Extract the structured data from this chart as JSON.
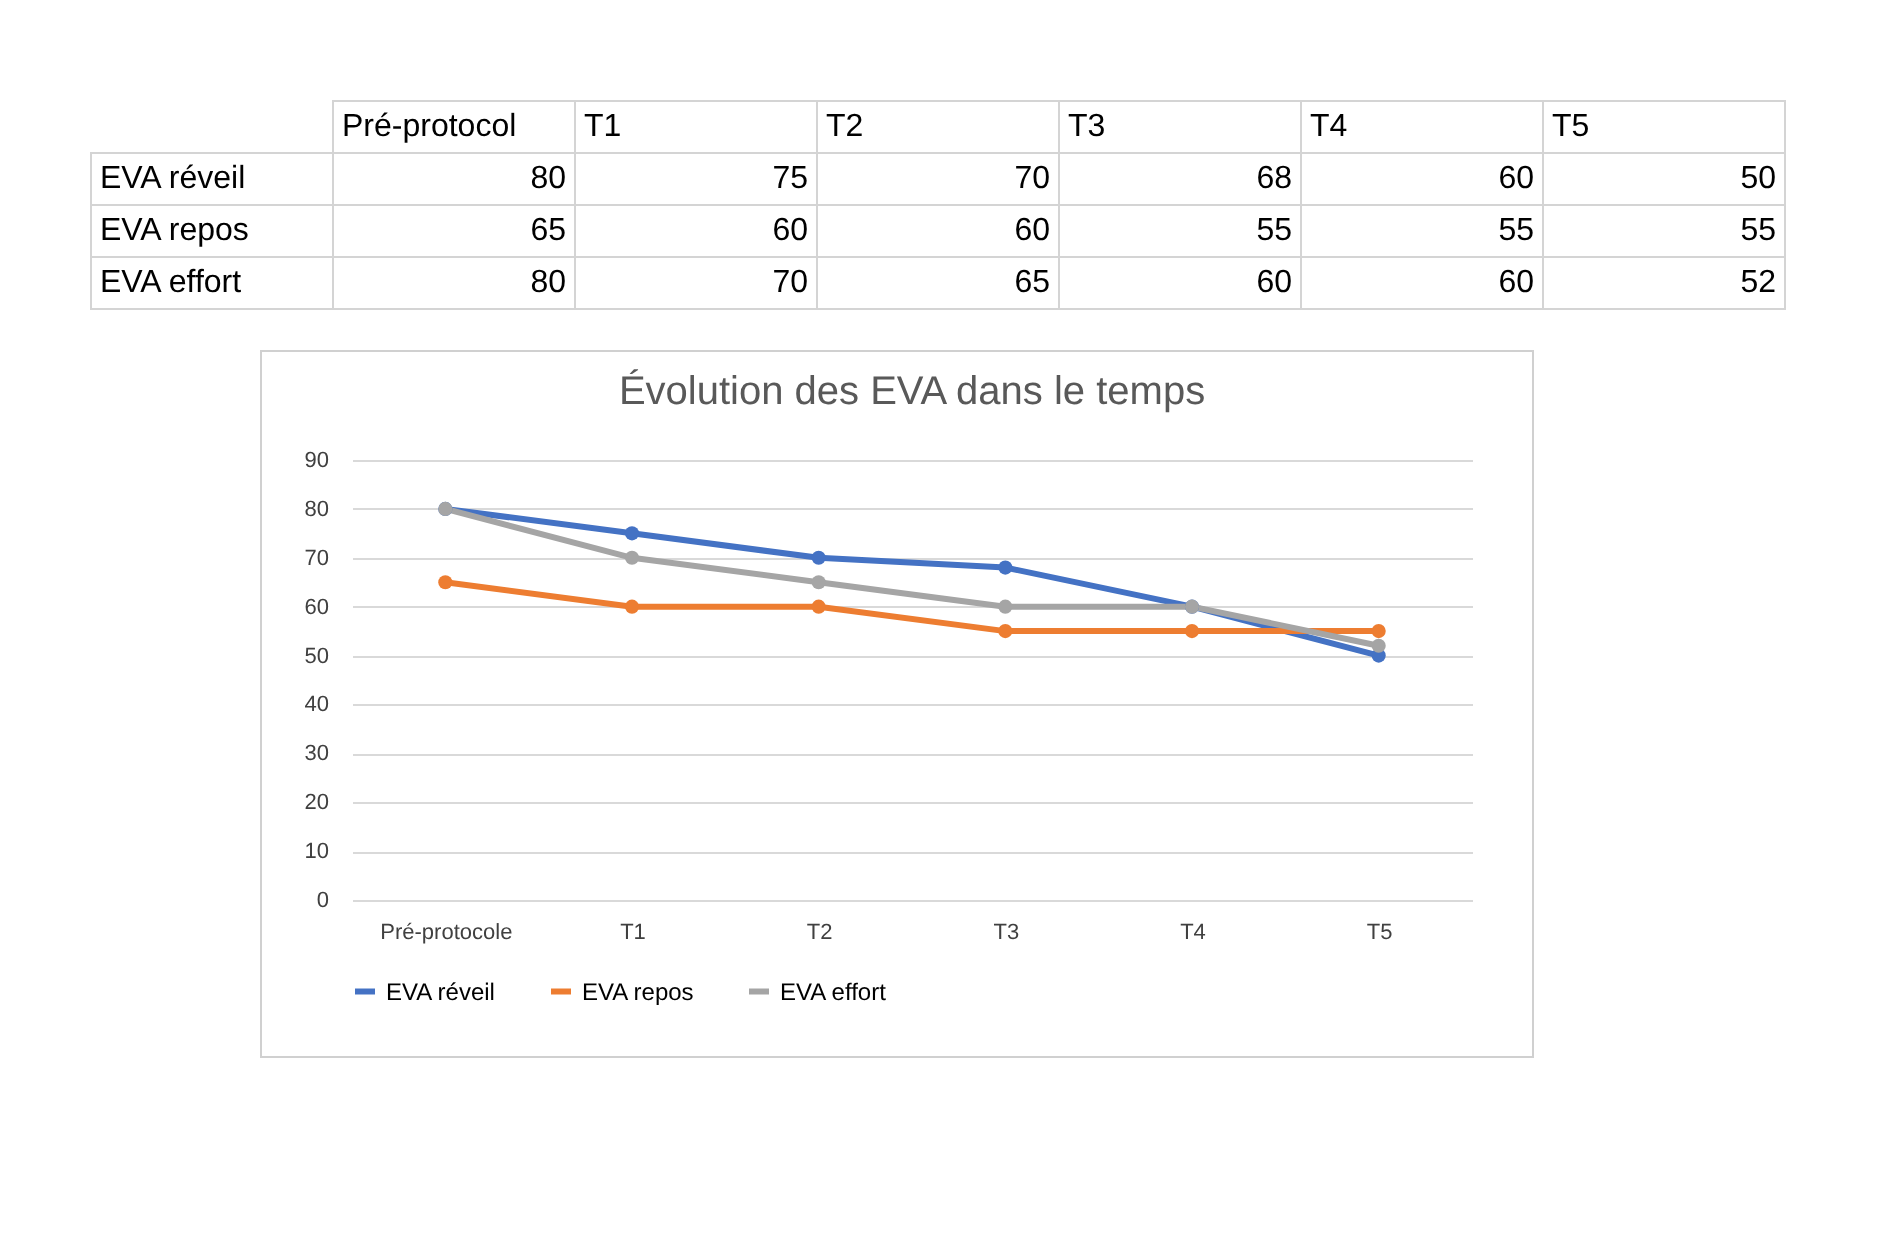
{
  "chart_data": [
    {
      "type": "other",
      "categories": [
        "Pré-protocol",
        "T1",
        "T2",
        "T3",
        "T4",
        "T5"
      ],
      "annotations": [
        "EVA réveil",
        "80",
        "75",
        "70",
        "68",
        "60",
        "50",
        "EVA repos",
        "65",
        "60",
        "60",
        "55",
        "55",
        "55",
        "EVA effort",
        "80",
        "70",
        "65",
        "60",
        "60",
        "52"
      ]
    },
    {
      "type": "line",
      "title": "Évolution des EVA dans le temps",
      "categories": [
        "Pré-protocole",
        "T1",
        "T2",
        "T3",
        "T4",
        "T5"
      ],
      "series": [
        {
          "name": "EVA réveil",
          "color": "#4472c4",
          "values": [
            80,
            75,
            70,
            68,
            60,
            50
          ]
        },
        {
          "name": "EVA repos",
          "color": "#ed7d31",
          "values": [
            65,
            60,
            60,
            55,
            55,
            55
          ]
        },
        {
          "name": "EVA effort",
          "color": "#a5a5a5",
          "values": [
            80,
            70,
            65,
            60,
            60,
            52
          ]
        }
      ],
      "ylim": [
        0,
        90
      ],
      "yticks": [
        0,
        10,
        20,
        30,
        40,
        50,
        60,
        70,
        80,
        90
      ],
      "grid": "y",
      "legend": "bottom",
      "marker": "circle",
      "line_style": "solid"
    }
  ]
}
